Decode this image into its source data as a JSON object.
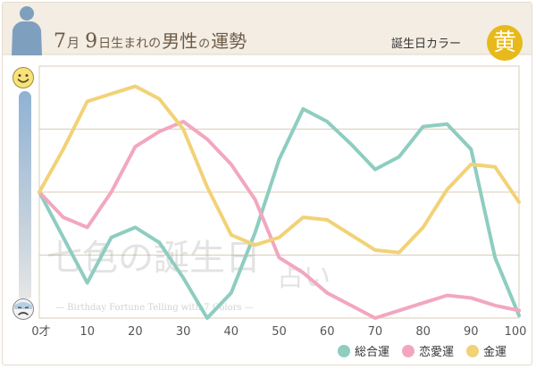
{
  "header": {
    "title_month": "7",
    "title_month_unit": "月",
    "title_day": "9",
    "title_day_unit": "日生まれの",
    "title_gender": "男性",
    "title_no": "の",
    "title_topic": "運勢",
    "color_label": "誕生日カラー",
    "color_char": "黄",
    "color_hex": "#e8b91b"
  },
  "icons": {
    "person": "person-silhouette-icon",
    "good": "smile-face-icon",
    "bad": "sad-face-icon"
  },
  "watermark": {
    "main": "七色の誕生日",
    "sub_char": "占い",
    "tagline": "— Birthday Fortune Telling with 7 Colors —"
  },
  "chart_data": {
    "type": "line",
    "x_tick_labels": [
      "0才",
      "10",
      "20",
      "30",
      "40",
      "50",
      "60",
      "70",
      "80",
      "90",
      "100"
    ],
    "xlim": [
      0,
      100
    ],
    "ylim": [
      0,
      100
    ],
    "grid": "horizontal",
    "legend_position": "bottom-right",
    "series": [
      {
        "name": "総合運",
        "color": "#8ecdc0",
        "points": [
          [
            0,
            50
          ],
          [
            10,
            14
          ],
          [
            15,
            32
          ],
          [
            20,
            36
          ],
          [
            25,
            30
          ],
          [
            30,
            16
          ],
          [
            35,
            0
          ],
          [
            40,
            10
          ],
          [
            45,
            34
          ],
          [
            50,
            63
          ],
          [
            55,
            83
          ],
          [
            60,
            78
          ],
          [
            65,
            69
          ],
          [
            70,
            59
          ],
          [
            75,
            64
          ],
          [
            80,
            76
          ],
          [
            85,
            77
          ],
          [
            90,
            67
          ],
          [
            95,
            24
          ],
          [
            100,
            1
          ]
        ]
      },
      {
        "name": "恋愛運",
        "color": "#f2a7bf",
        "points": [
          [
            0,
            50
          ],
          [
            5,
            40
          ],
          [
            10,
            36
          ],
          [
            15,
            50
          ],
          [
            20,
            68
          ],
          [
            25,
            74
          ],
          [
            30,
            78
          ],
          [
            35,
            71
          ],
          [
            40,
            61
          ],
          [
            45,
            47
          ],
          [
            50,
            24
          ],
          [
            55,
            18
          ],
          [
            60,
            10
          ],
          [
            65,
            5
          ],
          [
            70,
            0
          ],
          [
            75,
            3
          ],
          [
            80,
            6
          ],
          [
            85,
            9
          ],
          [
            90,
            8
          ],
          [
            95,
            5
          ],
          [
            100,
            3
          ]
        ]
      },
      {
        "name": "金運",
        "color": "#f2d277",
        "points": [
          [
            0,
            50
          ],
          [
            5,
            67
          ],
          [
            10,
            86
          ],
          [
            15,
            89
          ],
          [
            20,
            92
          ],
          [
            25,
            87
          ],
          [
            30,
            75
          ],
          [
            35,
            52
          ],
          [
            40,
            33
          ],
          [
            45,
            29
          ],
          [
            50,
            32
          ],
          [
            55,
            40
          ],
          [
            60,
            39
          ],
          [
            65,
            33
          ],
          [
            70,
            27
          ],
          [
            75,
            26
          ],
          [
            80,
            36
          ],
          [
            85,
            51
          ],
          [
            90,
            61
          ],
          [
            95,
            60
          ],
          [
            100,
            46
          ]
        ]
      }
    ]
  }
}
